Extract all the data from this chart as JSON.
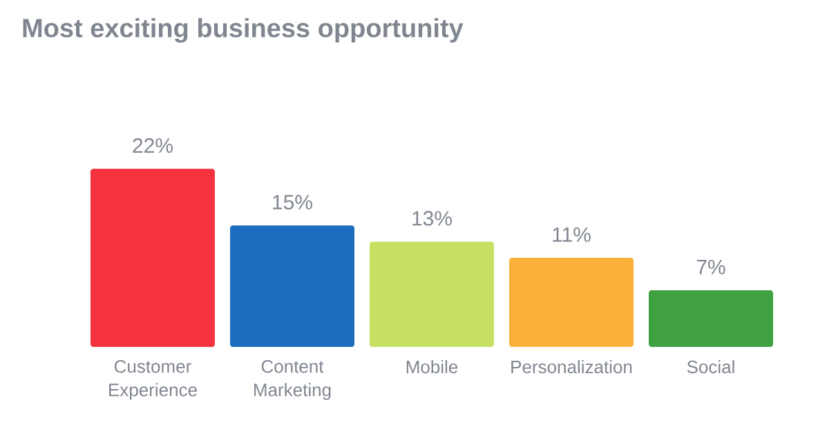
{
  "chart_data": {
    "type": "bar",
    "title": "Most exciting business opportunity",
    "categories": [
      "Customer Experience",
      "Content Marketing",
      "Mobile",
      "Personalization",
      "Social"
    ],
    "values": [
      22,
      15,
      13,
      11,
      7
    ],
    "value_labels": [
      "22%",
      "15%",
      "13%",
      "11%",
      "7%"
    ],
    "colors": [
      "#f5333f",
      "#1a6dbf",
      "#c5e063",
      "#fbb03b",
      "#3fa142"
    ]
  }
}
